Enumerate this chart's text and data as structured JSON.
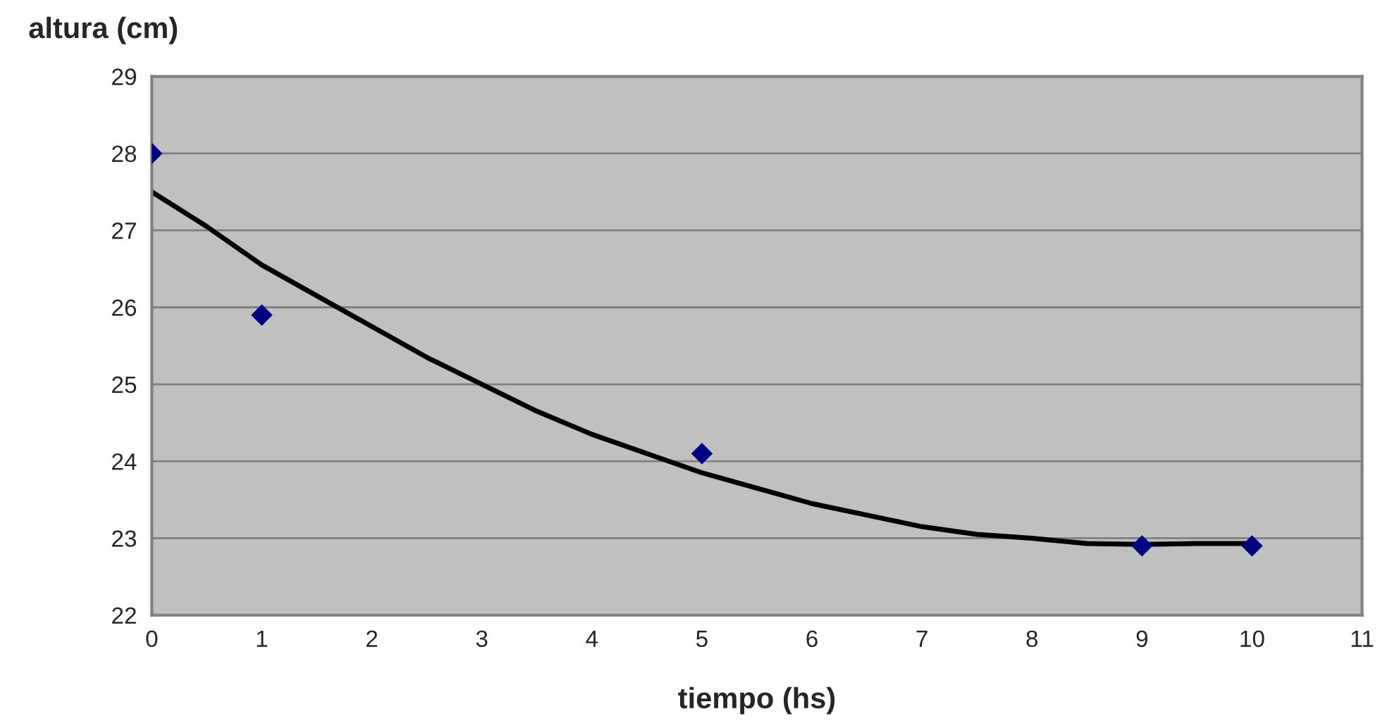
{
  "chart_data": {
    "type": "scatter",
    "xlabel": "tiempo (hs)",
    "ylabel": "altura (cm)",
    "xlim": [
      0,
      11
    ],
    "xticks": [
      0,
      1,
      2,
      3,
      4,
      5,
      6,
      7,
      8,
      9,
      10,
      11
    ],
    "ylim": [
      22,
      29
    ],
    "yticks": [
      22,
      23,
      24,
      25,
      26,
      27,
      28,
      29
    ],
    "grid": "y",
    "series": [
      {
        "color": "#000080",
        "marker": "diamond",
        "x": [
          0,
          1,
          5,
          9,
          10
        ],
        "values": [
          28,
          25.9,
          24.1,
          22.9,
          22.9
        ]
      },
      {
        "type": "line",
        "color": "#000000",
        "marker": "none",
        "line_style": "solid",
        "x": [
          0,
          0.5,
          1,
          1.5,
          2,
          2.5,
          3,
          3.5,
          4,
          4.5,
          5,
          5.5,
          6,
          6.5,
          7,
          7.5,
          8,
          8.5,
          9,
          9.5,
          10
        ],
        "values": [
          27.5,
          27.05,
          26.55,
          26.15,
          25.75,
          25.35,
          25.0,
          24.65,
          24.35,
          24.1,
          23.85,
          23.65,
          23.45,
          23.3,
          23.15,
          23.05,
          23.0,
          22.93,
          22.92,
          22.93,
          22.93
        ]
      }
    ]
  }
}
